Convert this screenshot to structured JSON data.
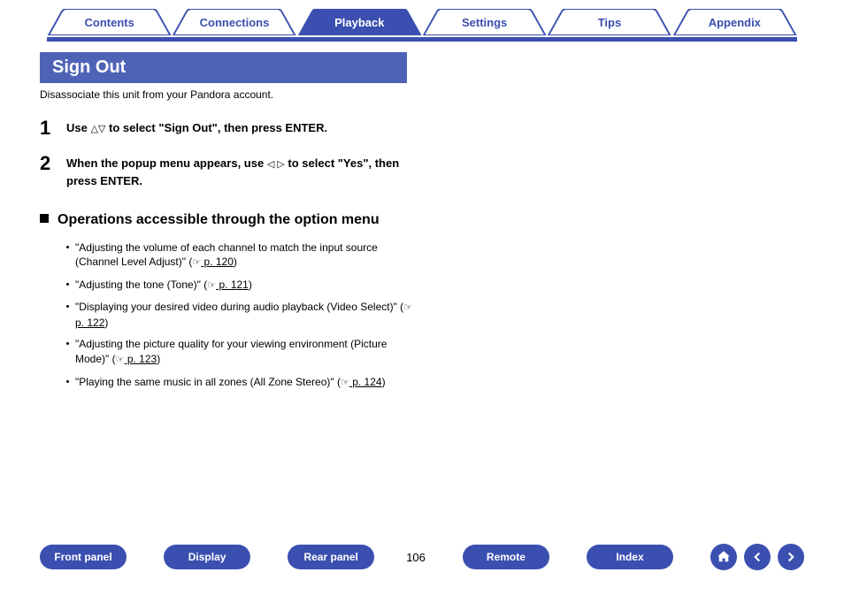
{
  "colors": {
    "primary": "#3b4fb0",
    "heading_bg": "#4f63b6",
    "tab_inactive_text": "#3b4fb0",
    "tab_active_text": "#ffffff",
    "tab_border": "#3b4fb0",
    "text": "#000000"
  },
  "tabs": [
    {
      "label": "Contents",
      "active": false
    },
    {
      "label": "Connections",
      "active": false
    },
    {
      "label": "Playback",
      "active": true
    },
    {
      "label": "Settings",
      "active": false
    },
    {
      "label": "Tips",
      "active": false
    },
    {
      "label": "Appendix",
      "active": false
    }
  ],
  "section": {
    "title": "Sign Out",
    "subtitle": "Disassociate this unit from your Pandora account."
  },
  "steps": [
    {
      "num": "1",
      "pre": "Use ",
      "glyph": "△▽",
      "post": " to select \"Sign Out\", then press ENTER."
    },
    {
      "num": "2",
      "pre": "When the popup menu appears, use ",
      "glyph": "◁ ▷",
      "post": " to select \"Yes\", then press ENTER."
    }
  ],
  "subsection_title": "Operations accessible through the option menu",
  "operations": [
    {
      "pre": "\"Adjusting the volume of each channel to match the input source (Channel Level Adjust)\" (",
      "page": " p. 120",
      "post": ")"
    },
    {
      "pre": "\"Adjusting the tone (Tone)\" (",
      "page": " p. 121",
      "post": ")"
    },
    {
      "pre": "\"Displaying your desired video during audio playback (Video Select)\" (",
      "page": " p. 122",
      "post": ")"
    },
    {
      "pre": "\"Adjusting the picture quality for your viewing environment (Picture Mode)\" (",
      "page": " p. 123",
      "post": ")"
    },
    {
      "pre": "\"Playing the same music in all zones (All Zone Stereo)\" (",
      "page": " p. 124",
      "post": ")"
    }
  ],
  "bottom_buttons": [
    "Front panel",
    "Display",
    "Rear panel"
  ],
  "page_number": "106",
  "bottom_buttons_right": [
    "Remote",
    "Index"
  ]
}
